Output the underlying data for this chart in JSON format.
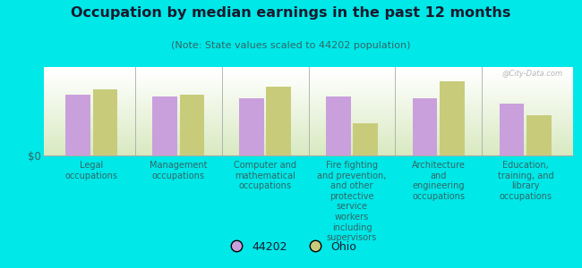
{
  "title": "Occupation by median earnings in the past 12 months",
  "subtitle": "(Note: State values scaled to 44202 population)",
  "background_color": "#00e8e8",
  "plot_bg_top": "#ffffff",
  "plot_bg_bottom": "#d8e8c0",
  "categories": [
    "Legal\noccupations",
    "Management\noccupations",
    "Computer and\nmathematical\noccupations",
    "Fire fighting\nand prevention,\nand other\nprotective\nservice\nworkers\nincluding\nsupervisors",
    "Architecture\nand\nengineering\noccupations",
    "Education,\ntraining, and\nlibrary\noccupations"
  ],
  "values_44202": [
    0.72,
    0.7,
    0.68,
    0.7,
    0.68,
    0.62
  ],
  "values_ohio": [
    0.78,
    0.72,
    0.82,
    0.38,
    0.88,
    0.48
  ],
  "color_44202": "#c9a0dc",
  "color_ohio": "#c8cc7a",
  "ylabel": "$0",
  "legend_44202": "44202",
  "legend_ohio": "Ohio",
  "watermark": "@City-Data.com",
  "title_color": "#1a1a2e",
  "subtitle_color": "#336666",
  "label_color": "#336666"
}
